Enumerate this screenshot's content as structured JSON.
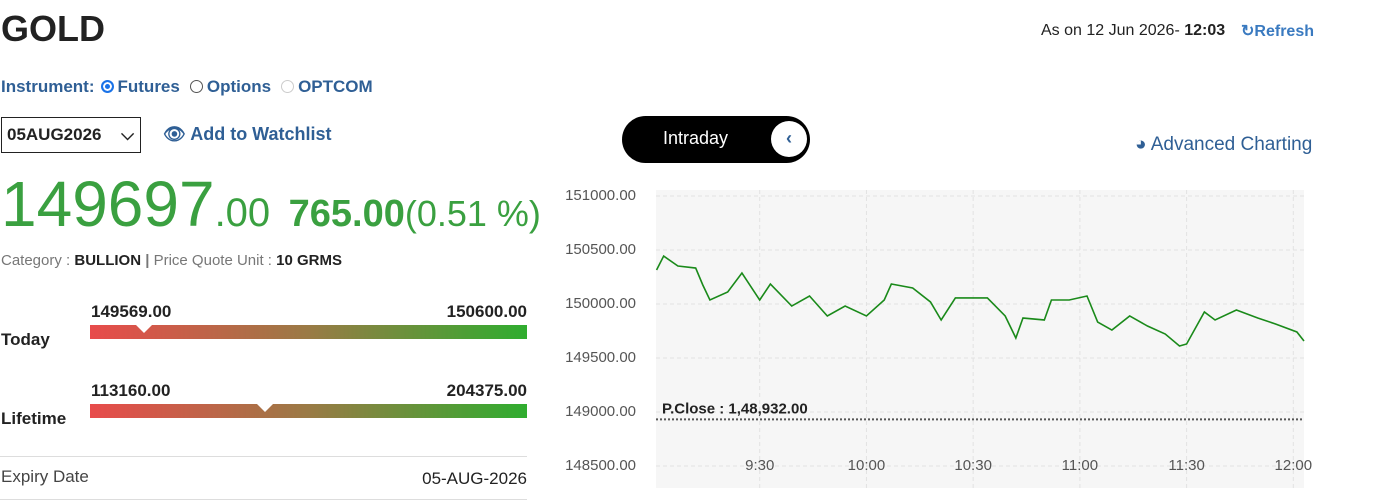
{
  "header": {
    "title": "GOLD",
    "as_on_label": "As on 12 Jun 2026- ",
    "as_on_time": "12:03",
    "refresh": "Refresh"
  },
  "instrument": {
    "label": "Instrument:",
    "options": [
      "Futures",
      "Options",
      "OPTCOM"
    ],
    "selected": 0
  },
  "expiry_select": "05AUG2026",
  "watchlist": "Add to Watchlist",
  "toggle": "Intraday",
  "advanced_charting": "Advanced Charting",
  "quote": {
    "price_whole": "149697",
    "price_fraction": ".00",
    "change": "765.00",
    "change_percent": "(0.51 %)"
  },
  "category": {
    "label": "Category : ",
    "value": "BULLION",
    "unit_label": "Price Quote Unit : ",
    "unit_value": "10 GRMS"
  },
  "ranges": [
    {
      "label": "Today",
      "low": "149569.00",
      "high": "150600.00"
    },
    {
      "label": "Lifetime",
      "low": "113160.00",
      "high": "204375.00"
    }
  ],
  "expiry": {
    "label": "Expiry Date",
    "value": "05-AUG-2026"
  },
  "chart_data": {
    "type": "line",
    "color": "#1a8a1a",
    "x": [
      541,
      543,
      547,
      552,
      554,
      556,
      561,
      565,
      570,
      573,
      579,
      584,
      589,
      594,
      600,
      605,
      607,
      613,
      618,
      621,
      625,
      634,
      639,
      642,
      644,
      650,
      652,
      657,
      662,
      665,
      669,
      674,
      679,
      684,
      688,
      690,
      695,
      698,
      704,
      710,
      715,
      721,
      723
    ],
    "values": [
      150315,
      150444,
      150352,
      150333,
      150176,
      150037,
      150111,
      150287,
      150037,
      150185,
      149981,
      150074,
      149889,
      149981,
      149889,
      150037,
      150185,
      150148,
      150019,
      149852,
      150056,
      150056,
      149889,
      149685,
      149870,
      149852,
      150037,
      150037,
      150074,
      149833,
      149759,
      149889,
      149796,
      149722,
      149611,
      149630,
      149926,
      149852,
      149944,
      149870,
      149815,
      149741,
      149657
    ],
    "xlim": [
      540,
      723
    ],
    "xticks": [
      {
        "value": 570,
        "label": "9:30"
      },
      {
        "value": 600,
        "label": "10:00"
      },
      {
        "value": 630,
        "label": "10:30"
      },
      {
        "value": 660,
        "label": "11:00"
      },
      {
        "value": 690,
        "label": "11:30"
      },
      {
        "value": 720,
        "label": "12:00"
      }
    ],
    "ylim": [
      148500,
      151000
    ],
    "yticks": [
      {
        "value": 151000,
        "label": "151000.00"
      },
      {
        "value": 150500,
        "label": "150500.00"
      },
      {
        "value": 150000,
        "label": "150000.00"
      },
      {
        "value": 149500,
        "label": "149500.00"
      },
      {
        "value": 149000,
        "label": "149000.00"
      },
      {
        "value": 148500,
        "label": "148500.00"
      }
    ],
    "reference_line": {
      "value": 148932,
      "label": "P.Close : 1,48,932.00"
    },
    "grid": true
  }
}
